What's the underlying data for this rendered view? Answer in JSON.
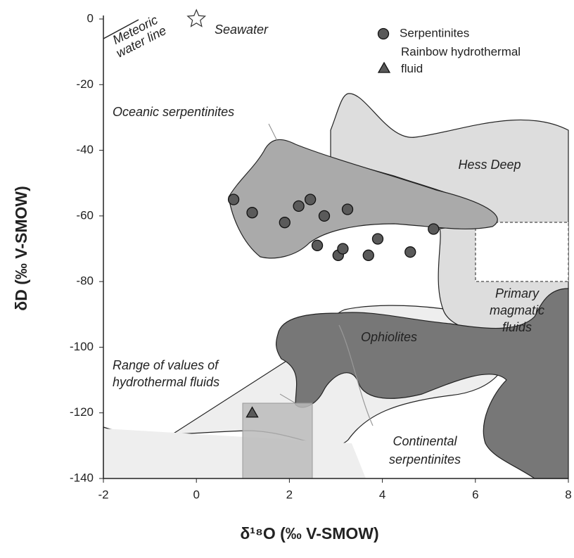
{
  "chart_data": {
    "type": "scatter",
    "x_label": "δ¹⁸O (‰ V-SMOW)",
    "y_label": "δD (‰ V-SMOW)",
    "xlim": [
      -2,
      8
    ],
    "ylim": [
      -140,
      0
    ],
    "xticks": [
      -2,
      0,
      2,
      4,
      6,
      8
    ],
    "yticks": [
      0,
      -20,
      -40,
      -60,
      -80,
      -100,
      -120,
      -140
    ],
    "grid": false,
    "legend": "upper right",
    "series": [
      {
        "name": "Serpentinites",
        "color": "#5a5a5a",
        "marker": "circle",
        "x": [
          0.8,
          1.2,
          1.9,
          2.2,
          2.45,
          2.75,
          3.25,
          2.6,
          3.05,
          3.15,
          3.7,
          3.9,
          4.6,
          5.1
        ],
        "values": [
          -55,
          -59,
          -62,
          -57,
          -55,
          -60,
          -58,
          -69,
          -72,
          -70,
          -72,
          -67,
          -71,
          -64
        ]
      },
      {
        "name": "Rainbow hydrothermal fluid",
        "color": "#5a5a5a",
        "marker": "triangle",
        "x": [
          1.2
        ],
        "values": [
          -120
        ]
      },
      {
        "name": "Seawater",
        "color": "#ffffff",
        "marker": "star",
        "x": [
          0
        ],
        "values": [
          0
        ]
      }
    ],
    "annotations": [
      {
        "text": [
          "Seawater"
        ]
      },
      {
        "text": [
          "Meteoric",
          "water line"
        ]
      },
      {
        "text": [
          "Oceanic serpentinites"
        ]
      },
      {
        "text": [
          "Hess Deep"
        ]
      },
      {
        "text": [
          "Primary",
          "magmatic",
          "fluids"
        ]
      },
      {
        "text": [
          "Ophiolites"
        ]
      },
      {
        "text": [
          "Range of values of",
          "hydrothermal fluids"
        ]
      },
      {
        "text": [
          "Continental",
          "serpentinites"
        ]
      }
    ]
  }
}
